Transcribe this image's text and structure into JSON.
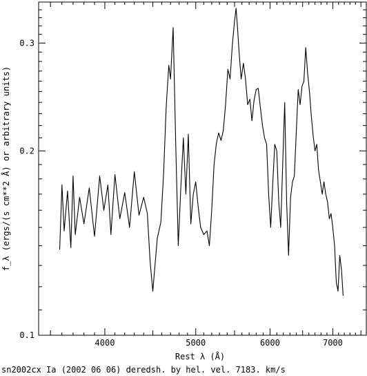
{
  "chart_data": {
    "type": "line",
    "xlabel": "Rest λ (Å)",
    "ylabel": "f_λ (ergs/(s cm**2 Å) or arbitrary units)",
    "caption": "sn2002cx Ia (2002 06 06) deredsh. by hel. vel.  7183. km/s",
    "x_scale": "log",
    "y_scale": "log",
    "xlim": [
      3400,
      7600
    ],
    "ylim": [
      0.1,
      0.35
    ],
    "x_ticks": [
      {
        "value": 4000,
        "label": "4000"
      },
      {
        "value": 5000,
        "label": "5000"
      },
      {
        "value": 6000,
        "label": "6000"
      },
      {
        "value": 7000,
        "label": "7000"
      }
    ],
    "y_ticks": [
      {
        "value": 0.1,
        "label": "0.1"
      },
      {
        "value": 0.2,
        "label": "0.2"
      },
      {
        "value": 0.3,
        "label": "0.3"
      }
    ],
    "series": [
      {
        "x": [
          3580,
          3600,
          3620,
          3650,
          3680,
          3700,
          3720,
          3760,
          3800,
          3850,
          3900,
          3950,
          3990,
          4030,
          4060,
          4100,
          4150,
          4200,
          4250,
          4300,
          4350,
          4400,
          4440,
          4470,
          4500,
          4550,
          4590,
          4620,
          4650,
          4680,
          4700,
          4730,
          4760,
          4790,
          4820,
          4850,
          4880,
          4910,
          4940,
          4970,
          5000,
          5030,
          5060,
          5100,
          5140,
          5170,
          5200,
          5230,
          5260,
          5290,
          5320,
          5350,
          5380,
          5410,
          5440,
          5470,
          5500,
          5520,
          5540,
          5560,
          5590,
          5620,
          5650,
          5680,
          5710,
          5740,
          5770,
          5800,
          5830,
          5860,
          5890,
          5920,
          5950,
          5980,
          6010,
          6040,
          6070,
          6100,
          6130,
          6160,
          6190,
          6220,
          6250,
          6280,
          6310,
          6340,
          6370,
          6400,
          6430,
          6460,
          6490,
          6520,
          6550,
          6580,
          6610,
          6640,
          6670,
          6700,
          6730,
          6760,
          6790,
          6820,
          6850,
          6880,
          6910,
          6940,
          6970,
          7000,
          7030,
          7060,
          7090,
          7120,
          7150,
          7180
        ],
        "y": [
          0.138,
          0.176,
          0.148,
          0.172,
          0.139,
          0.182,
          0.146,
          0.168,
          0.152,
          0.174,
          0.145,
          0.182,
          0.16,
          0.176,
          0.146,
          0.183,
          0.155,
          0.171,
          0.15,
          0.185,
          0.157,
          0.168,
          0.158,
          0.132,
          0.118,
          0.144,
          0.153,
          0.183,
          0.236,
          0.276,
          0.262,
          0.318,
          0.206,
          0.14,
          0.174,
          0.21,
          0.17,
          0.213,
          0.152,
          0.17,
          0.178,
          0.162,
          0.15,
          0.146,
          0.148,
          0.14,
          0.16,
          0.19,
          0.206,
          0.214,
          0.208,
          0.216,
          0.238,
          0.272,
          0.262,
          0.298,
          0.326,
          0.342,
          0.318,
          0.292,
          0.262,
          0.278,
          0.262,
          0.238,
          0.243,
          0.224,
          0.242,
          0.252,
          0.253,
          0.235,
          0.22,
          0.21,
          0.205,
          0.17,
          0.15,
          0.176,
          0.205,
          0.2,
          0.165,
          0.15,
          0.19,
          0.24,
          0.165,
          0.135,
          0.168,
          0.178,
          0.182,
          0.215,
          0.252,
          0.238,
          0.255,
          0.26,
          0.295,
          0.268,
          0.25,
          0.228,
          0.212,
          0.2,
          0.205,
          0.186,
          0.178,
          0.17,
          0.178,
          0.17,
          0.165,
          0.155,
          0.158,
          0.15,
          0.14,
          0.122,
          0.118,
          0.135,
          0.128,
          0.116
        ]
      }
    ]
  }
}
